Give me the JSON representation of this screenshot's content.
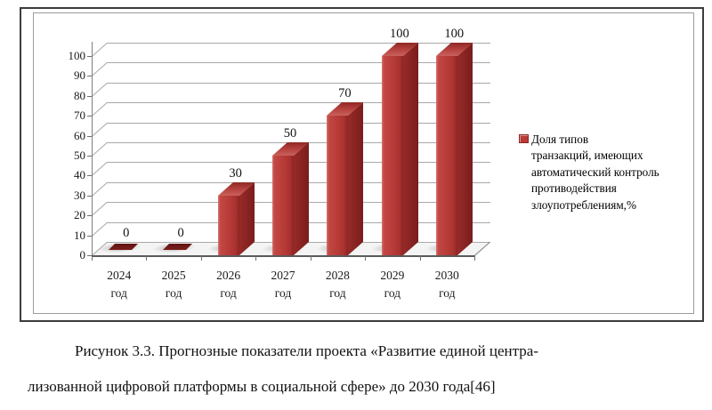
{
  "figure": {
    "caption_lines": [
      "Рисунок 3.3. Прогнозные показатели проекта «Развитие единой центра-",
      "лизованной цифровой платформы в социальной сфере» до 2030 года[46]"
    ]
  },
  "chart_data": {
    "type": "bar",
    "style": "3d-column",
    "title": "",
    "xlabel": "",
    "ylabel": "",
    "categories": [
      "2024 год",
      "2025 год",
      "2026 год",
      "2027 год",
      "2028 год",
      "2029 год",
      "2030 год"
    ],
    "values": [
      0,
      0,
      30,
      50,
      70,
      100,
      100
    ],
    "data_labels": [
      "0",
      "0",
      "30",
      "50",
      "70",
      "100",
      "100"
    ],
    "series_name": "Доля типов транзакций, имеющих автоматический контроль противодействия злоупотреблениям,%",
    "legend_lines": [
      "Доля типов",
      "транзакций, имеющих",
      "автоматический контроль",
      "противодействия",
      "злоупотреблениям,%"
    ],
    "legend_position": "right",
    "ylim": [
      0,
      100
    ],
    "ytick_step": 10,
    "yticks": [
      0,
      10,
      20,
      30,
      40,
      50,
      60,
      70,
      80,
      90,
      100
    ],
    "grid": true,
    "bar_color": "#b63a37",
    "bar_side_color": "#7c1d1c",
    "bar_zero_color": "#6e1817",
    "grid_color": "#a8a8a8",
    "axis_color": "#5a5a5a",
    "text_color": "#1a1a1a"
  }
}
